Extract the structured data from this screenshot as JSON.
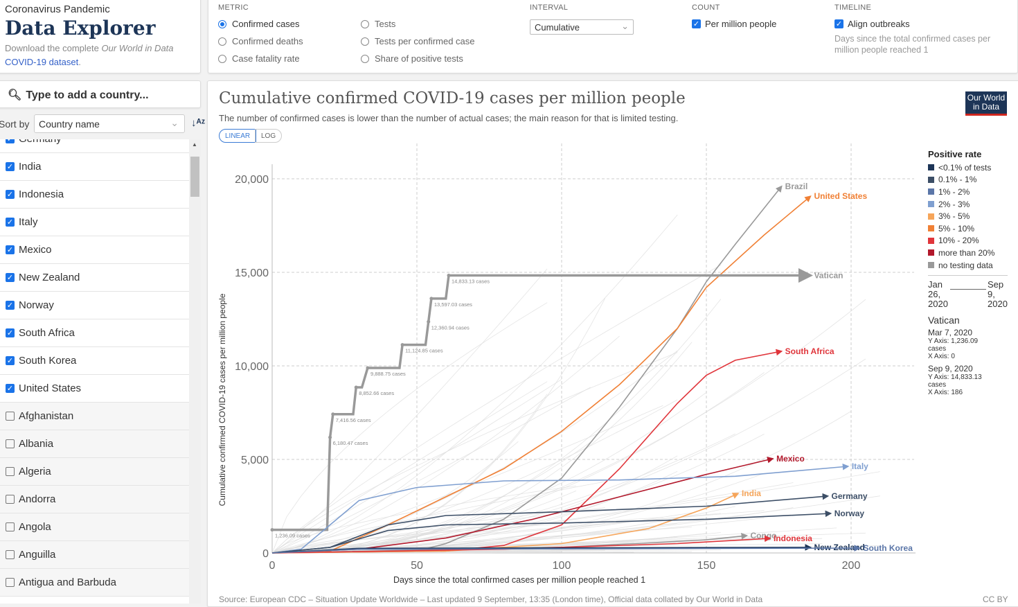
{
  "header": {
    "supertitle": "Coronavirus Pandemic",
    "title": "Data Explorer",
    "download_prefix": "Download the complete ",
    "download_italic": "Our World in Data",
    "download_link": "COVID-19 dataset",
    "download_suffix": "."
  },
  "search": {
    "placeholder": "Type to add a country...",
    "icon": "search-icon"
  },
  "sort": {
    "label": "Sort by",
    "value": "Country name",
    "order_icon": "sort-alpha-icon"
  },
  "countries": [
    {
      "name": "Germany",
      "checked": true
    },
    {
      "name": "India",
      "checked": true
    },
    {
      "name": "Indonesia",
      "checked": true
    },
    {
      "name": "Italy",
      "checked": true
    },
    {
      "name": "Mexico",
      "checked": true
    },
    {
      "name": "New Zealand",
      "checked": true
    },
    {
      "name": "Norway",
      "checked": true
    },
    {
      "name": "South Africa",
      "checked": true
    },
    {
      "name": "South Korea",
      "checked": true
    },
    {
      "name": "United States",
      "checked": true
    },
    {
      "name": "Afghanistan",
      "checked": false
    },
    {
      "name": "Albania",
      "checked": false
    },
    {
      "name": "Algeria",
      "checked": false
    },
    {
      "name": "Andorra",
      "checked": false
    },
    {
      "name": "Angola",
      "checked": false
    },
    {
      "name": "Anguilla",
      "checked": false
    },
    {
      "name": "Antigua and Barbuda",
      "checked": false
    }
  ],
  "controls": {
    "metric": {
      "label": "METRIC",
      "options": [
        {
          "label": "Confirmed cases",
          "selected": true
        },
        {
          "label": "Confirmed deaths",
          "selected": false
        },
        {
          "label": "Case fatality rate",
          "selected": false
        },
        {
          "label": "Tests",
          "selected": false
        },
        {
          "label": "Tests per confirmed case",
          "selected": false
        },
        {
          "label": "Share of positive tests",
          "selected": false
        }
      ]
    },
    "interval": {
      "label": "INTERVAL",
      "value": "Cumulative"
    },
    "count": {
      "label": "COUNT",
      "option": "Per million people",
      "checked": true
    },
    "timeline": {
      "label": "TIMELINE",
      "option": "Align outbreaks",
      "checked": true,
      "note": "Days since the total confirmed cases per million people reached 1"
    }
  },
  "chart": {
    "title": "Cumulative confirmed COVID-19 cases per million people",
    "subtitle": "The number of confirmed cases is lower than the number of actual cases; the main reason for that is limited testing.",
    "scale_toggle": [
      "LINEAR",
      "LOG"
    ],
    "active_scale": "LINEAR",
    "logo": "Our World in Data",
    "source": "Source: European CDC – Situation Update Worldwide – Last updated 9 September, 13:35 (London time), Official data collated by Our World in Data",
    "license": "CC BY"
  },
  "chart_data": {
    "type": "line",
    "xlabel": "Days since the total confirmed cases per million people reached 1",
    "ylabel": "Cumulative confirmed COVID-19 cases per million people",
    "xlim": [
      0,
      220
    ],
    "ylim": [
      0,
      21000
    ],
    "xticks": [
      "0",
      "50",
      "100",
      "150",
      "200"
    ],
    "xtick_values": [
      0,
      50,
      100,
      150,
      200
    ],
    "yticks": [
      "0",
      "5,000",
      "10,000",
      "15,000",
      "20,000"
    ],
    "ytick_values": [
      0,
      5000,
      10000,
      15000,
      20000
    ],
    "grid": true,
    "legend": {
      "title": "Positive rate",
      "placement": "right",
      "items": [
        {
          "label": "<0.1% of tests",
          "color": "#1d3557"
        },
        {
          "label": "0.1% - 1%",
          "color": "#3c4e66"
        },
        {
          "label": "1% - 2%",
          "color": "#5b76a8"
        },
        {
          "label": "2% - 3%",
          "color": "#7f9fd0"
        },
        {
          "label": "3% - 5%",
          "color": "#f6a55a"
        },
        {
          "label": "5% - 10%",
          "color": "#f08035"
        },
        {
          "label": "10% - 20%",
          "color": "#e0353b"
        },
        {
          "label": "more than 20%",
          "color": "#b2182b"
        },
        {
          "label": "no testing data",
          "color": "#999999"
        }
      ]
    },
    "timeline": {
      "start": "Jan 26, 2020",
      "end": "Sep 9, 2020"
    },
    "hover": {
      "country": "Vatican",
      "points": [
        {
          "date": "Mar 7, 2020",
          "y": "Y Axis: 1,236.09 cases",
          "x": "X Axis: 0"
        },
        {
          "date": "Sep 9, 2020",
          "y": "Y Axis: 14,833.13 cases",
          "x": "X Axis: 186"
        }
      ]
    },
    "series": [
      {
        "name": "Brazil",
        "color": "#999999",
        "x": [
          0,
          50,
          60,
          80,
          100,
          120,
          140,
          150,
          160,
          176
        ],
        "y": [
          0,
          100,
          500,
          1800,
          4000,
          7800,
          12000,
          14500,
          16500,
          19600
        ]
      },
      {
        "name": "United States",
        "color": "#f08035",
        "x": [
          0,
          20,
          40,
          60,
          80,
          100,
          120,
          140,
          150,
          170,
          186
        ],
        "y": [
          0,
          100,
          1500,
          3000,
          4500,
          6500,
          9000,
          12000,
          14200,
          17000,
          19070
        ]
      },
      {
        "name": "Vatican",
        "color": "#999999",
        "x": [
          0,
          19,
          20,
          21,
          28,
          29,
          31,
          33,
          44,
          45,
          53,
          54,
          55,
          60,
          61,
          186
        ],
        "y": [
          1236.09,
          1236.09,
          6180.47,
          7416.56,
          7416.56,
          8852.66,
          8852.66,
          9888.75,
          9888.75,
          11124.85,
          11124.85,
          12360.94,
          13597.03,
          13597.03,
          14833.13,
          14833.13
        ],
        "point_labels": [
          {
            "x": 0,
            "y": 1236.09,
            "text": "1,236.09 cases"
          },
          {
            "x": 20,
            "y": 6180.47,
            "text": "6,180.47 cases"
          },
          {
            "x": 21,
            "y": 7416.56,
            "text": "7,416.56 cases"
          },
          {
            "x": 29,
            "y": 8852.66,
            "text": "8,852.66 cases"
          },
          {
            "x": 33,
            "y": 9888.75,
            "text": "9,888.75 cases"
          },
          {
            "x": 45,
            "y": 11124.85,
            "text": "11,124.85 cases"
          },
          {
            "x": 54,
            "y": 12360.94,
            "text": "12,360.94 cases"
          },
          {
            "x": 55,
            "y": 13597.03,
            "text": "13,597.03 cases"
          },
          {
            "x": 61,
            "y": 14833.13,
            "text": "14,833.13 cases"
          }
        ]
      },
      {
        "name": "South Africa",
        "color": "#e0353b",
        "x": [
          0,
          60,
          80,
          100,
          120,
          140,
          150,
          160,
          176
        ],
        "y": [
          0,
          100,
          400,
          1500,
          4500,
          8000,
          9500,
          10300,
          10780
        ]
      },
      {
        "name": "Mexico",
        "color": "#b2182b",
        "x": [
          0,
          30,
          60,
          90,
          120,
          150,
          173
        ],
        "y": [
          0,
          200,
          800,
          1800,
          3000,
          4200,
          5040
        ]
      },
      {
        "name": "Italy",
        "color": "#7f9fd0",
        "x": [
          0,
          10,
          20,
          30,
          50,
          80,
          120,
          160,
          199
        ],
        "y": [
          0,
          200,
          1500,
          2800,
          3500,
          3850,
          3900,
          4100,
          4630
        ]
      },
      {
        "name": "India",
        "color": "#f6a55a",
        "x": [
          0,
          60,
          100,
          130,
          150,
          161
        ],
        "y": [
          0,
          100,
          500,
          1300,
          2400,
          3180
        ]
      },
      {
        "name": "Germany",
        "color": "#3c4e66",
        "x": [
          0,
          20,
          40,
          60,
          100,
          150,
          192
        ],
        "y": [
          0,
          300,
          1500,
          2000,
          2200,
          2500,
          3040
        ]
      },
      {
        "name": "Norway",
        "color": "#3c4e66",
        "x": [
          0,
          20,
          40,
          60,
          100,
          150,
          193
        ],
        "y": [
          0,
          300,
          1200,
          1500,
          1600,
          1800,
          2110
        ]
      },
      {
        "name": "Congo",
        "color": "#999999",
        "x": [
          0,
          100,
          150,
          164
        ],
        "y": [
          0,
          300,
          700,
          930
        ]
      },
      {
        "name": "Indonesia",
        "color": "#e0353b",
        "x": [
          0,
          80,
          140,
          172
        ],
        "y": [
          0,
          200,
          500,
          780
        ]
      },
      {
        "name": "New Zealand",
        "color": "#1d3557",
        "x": [
          0,
          30,
          186
        ],
        "y": [
          0,
          250,
          300
        ]
      },
      {
        "name": "South Korea",
        "color": "#5b76a8",
        "x": [
          0,
          30,
          203
        ],
        "y": [
          0,
          200,
          260
        ]
      }
    ]
  }
}
